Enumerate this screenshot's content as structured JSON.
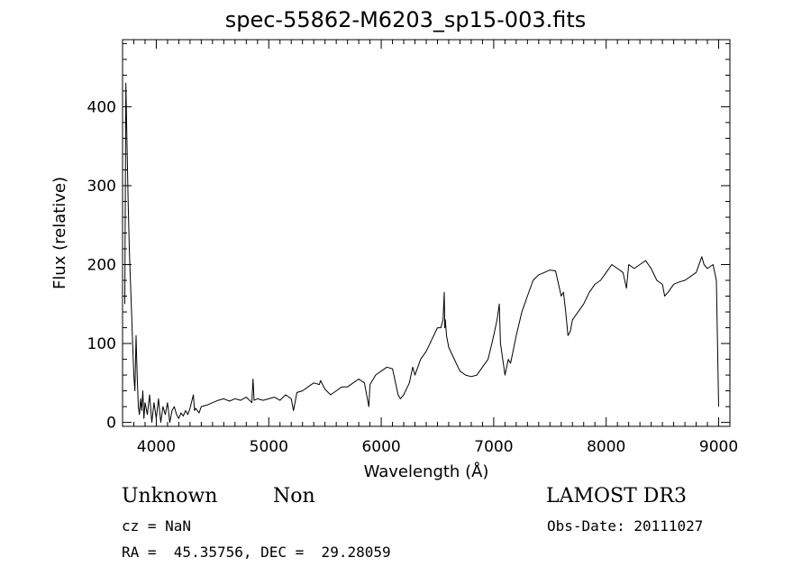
{
  "chart_data": {
    "type": "line",
    "title": "spec-55862-M6203_sp15-003.fits",
    "xlabel": "Wavelength (Å)",
    "ylabel": "Flux (relative)",
    "xlim": [
      3700,
      9100
    ],
    "ylim": [
      -5,
      485
    ],
    "xticks": [
      4000,
      5000,
      6000,
      7000,
      8000,
      9000
    ],
    "yticks": [
      0,
      100,
      200,
      300,
      400
    ],
    "grid": false,
    "series": [
      {
        "x": [
          3720,
          3730,
          3740,
          3750,
          3760,
          3770,
          3780,
          3790,
          3800,
          3810,
          3820,
          3830,
          3840,
          3850,
          3860,
          3870,
          3880,
          3890,
          3900,
          3920,
          3940,
          3960,
          3980,
          4000,
          4020,
          4040,
          4060,
          4080,
          4100,
          4120,
          4140,
          4160,
          4180,
          4200,
          4220,
          4240,
          4260,
          4280,
          4300,
          4330,
          4340,
          4350,
          4380,
          4400,
          4450,
          4500,
          4550,
          4600,
          4650,
          4700,
          4750,
          4800,
          4850,
          4860,
          4870,
          4900,
          4950,
          5000,
          5050,
          5100,
          5150,
          5200,
          5220,
          5250,
          5300,
          5350,
          5400,
          5450,
          5460,
          5500,
          5550,
          5600,
          5650,
          5700,
          5750,
          5800,
          5850,
          5890,
          5900,
          5950,
          6000,
          6050,
          6100,
          6150,
          6170,
          6200,
          6250,
          6280,
          6300,
          6350,
          6400,
          6450,
          6500,
          6530,
          6550,
          6560,
          6565,
          6570,
          6580,
          6600,
          6650,
          6700,
          6750,
          6800,
          6850,
          6900,
          6950,
          7000,
          7030,
          7050,
          7060,
          7080,
          7100,
          7130,
          7150,
          7200,
          7250,
          7300,
          7350,
          7400,
          7450,
          7500,
          7550,
          7600,
          7620,
          7640,
          7660,
          7680,
          7700,
          7750,
          7800,
          7850,
          7900,
          7950,
          8000,
          8050,
          8100,
          8150,
          8180,
          8200,
          8250,
          8300,
          8350,
          8400,
          8450,
          8500,
          8520,
          8550,
          8600,
          8650,
          8700,
          8750,
          8800,
          8850,
          8870,
          8900,
          8950,
          8980,
          9000
        ],
        "values": [
          150,
          430,
          350,
          280,
          220,
          180,
          140,
          100,
          60,
          40,
          110,
          60,
          20,
          10,
          30,
          15,
          40,
          5,
          25,
          10,
          35,
          0,
          25,
          5,
          30,
          0,
          20,
          10,
          25,
          0,
          15,
          20,
          10,
          5,
          12,
          8,
          15,
          10,
          18,
          35,
          15,
          18,
          12,
          20,
          22,
          25,
          28,
          30,
          27,
          30,
          28,
          32,
          25,
          55,
          28,
          30,
          28,
          30,
          32,
          28,
          35,
          30,
          15,
          38,
          40,
          45,
          50,
          48,
          53,
          42,
          35,
          40,
          45,
          45,
          50,
          55,
          50,
          20,
          48,
          60,
          65,
          70,
          68,
          35,
          30,
          35,
          50,
          70,
          60,
          80,
          90,
          105,
          120,
          120,
          130,
          165,
          120,
          130,
          110,
          95,
          80,
          65,
          60,
          58,
          60,
          70,
          80,
          110,
          130,
          150,
          100,
          80,
          60,
          80,
          75,
          110,
          140,
          160,
          180,
          187,
          190,
          193,
          192,
          160,
          165,
          140,
          110,
          115,
          130,
          140,
          150,
          165,
          175,
          180,
          190,
          200,
          195,
          190,
          170,
          200,
          195,
          200,
          205,
          195,
          180,
          175,
          160,
          165,
          175,
          178,
          180,
          185,
          190,
          210,
          200,
          195,
          200,
          180,
          20
        ]
      }
    ]
  },
  "annotations": {
    "class": "Unknown",
    "subclass": "Non",
    "survey": "LAMOST DR3",
    "cz": "cz = NaN",
    "obs_date": "Obs-Date: 20111027",
    "radec": "RA =  45.35756, DEC =  29.28059"
  }
}
